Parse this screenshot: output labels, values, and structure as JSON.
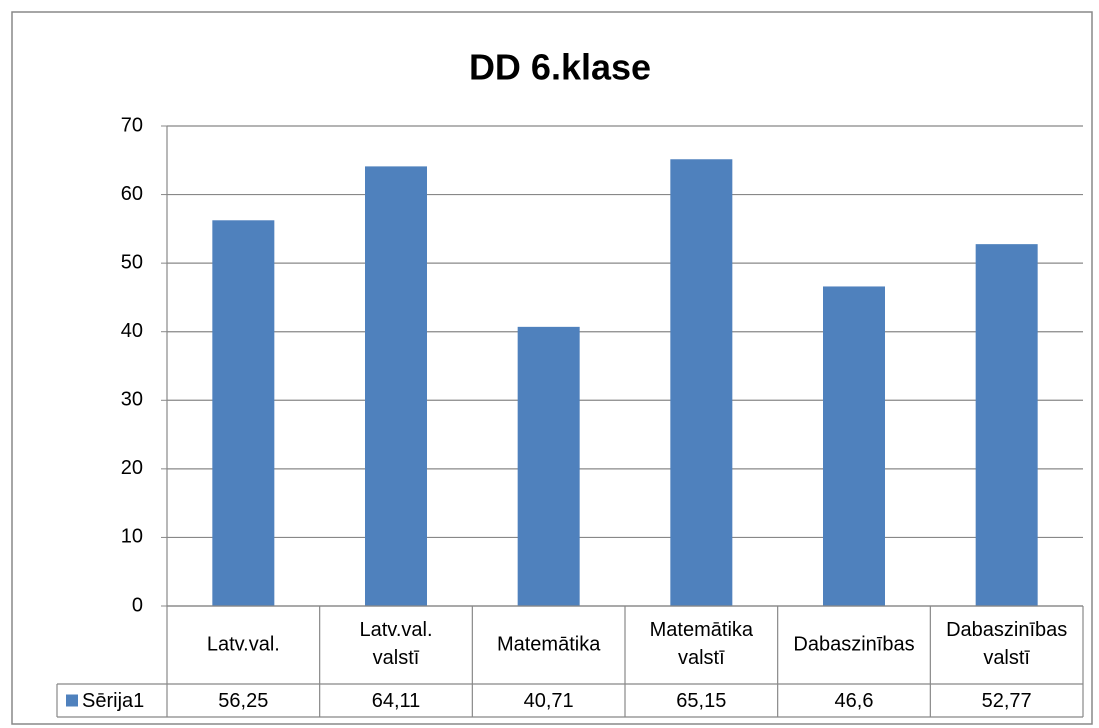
{
  "chart_data": {
    "type": "bar",
    "title": "DD 6.klase",
    "categories": [
      "Latv.val.",
      "Latv.val. valstī",
      "Matemātika",
      "Matemātika valstī",
      "Dabaszinības",
      "Dabaszinības valstī"
    ],
    "series": [
      {
        "name": "Sērija1",
        "color": "#4f81bd",
        "values": [
          56.25,
          64.11,
          40.71,
          65.15,
          46.6,
          52.77
        ],
        "value_labels": [
          "56,25",
          "64,11",
          "40,71",
          "65,15",
          "46,6",
          "52,77"
        ]
      }
    ],
    "ylim": [
      0,
      70
    ],
    "yticks": [
      0,
      10,
      20,
      30,
      40,
      50,
      60,
      70
    ],
    "grid": true,
    "data_table": true
  }
}
